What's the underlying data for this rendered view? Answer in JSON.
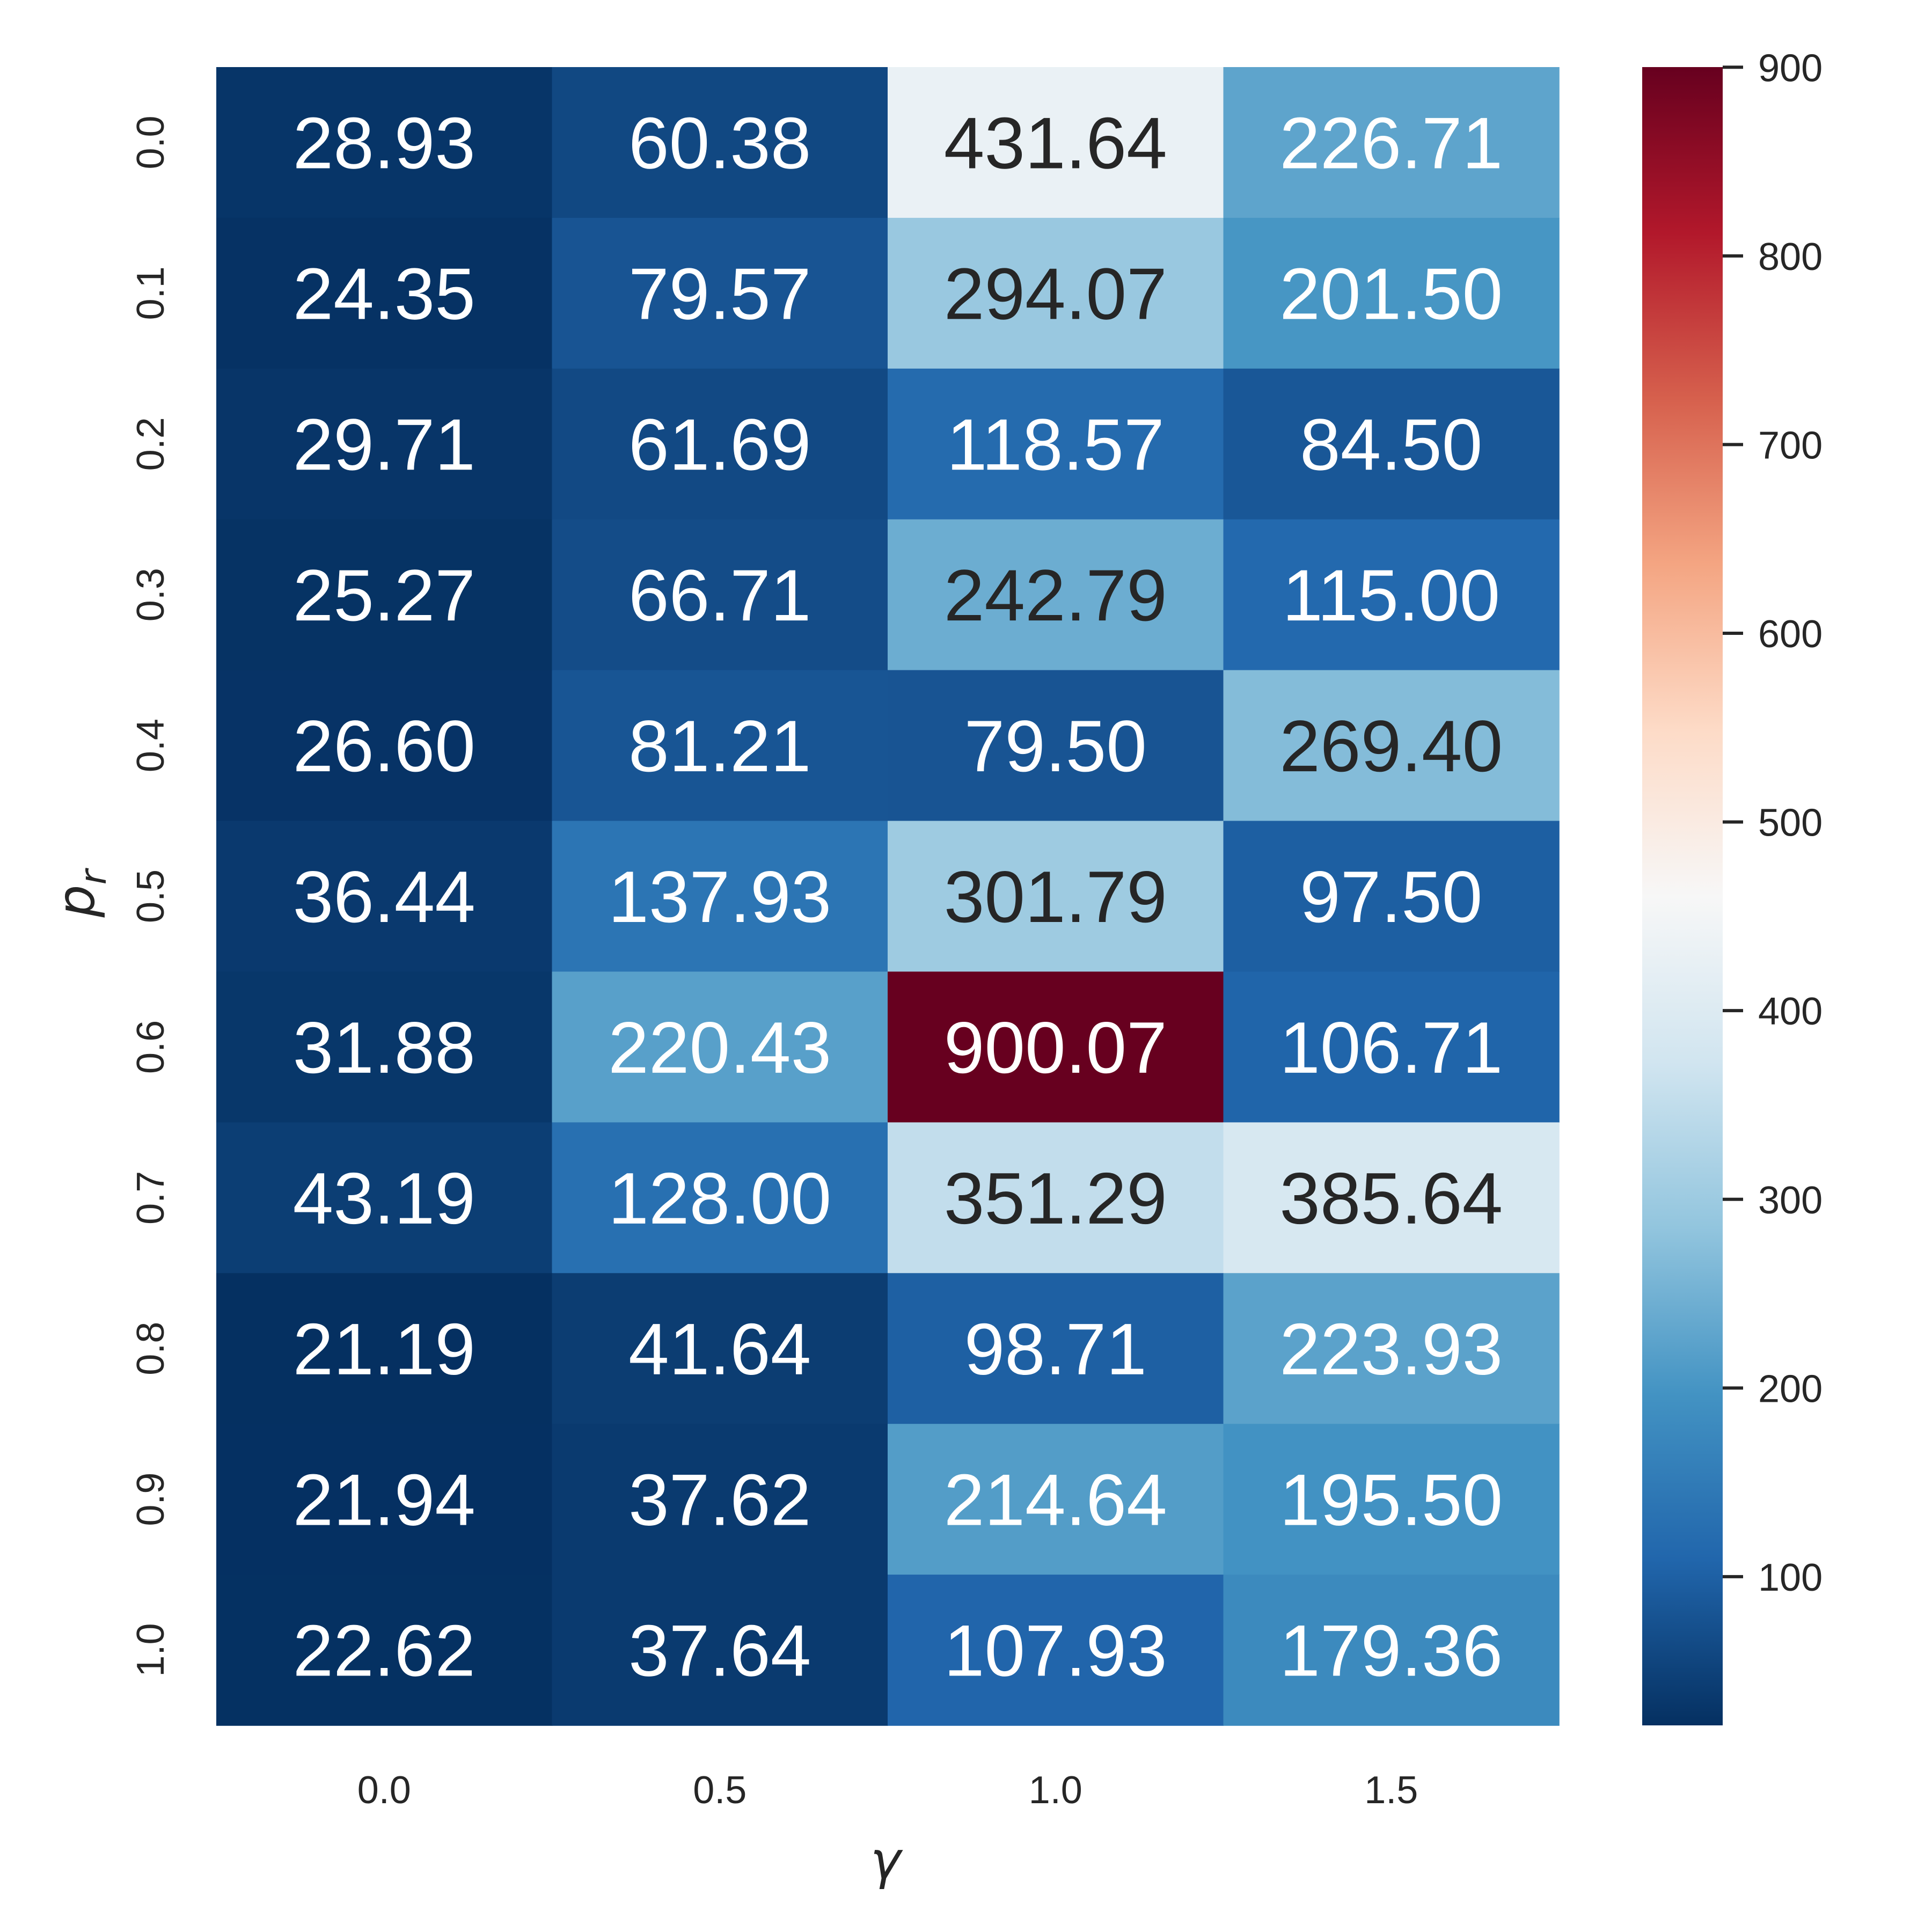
{
  "chart_data": {
    "type": "heatmap",
    "xlabel": "γ",
    "ylabel_main": "p",
    "ylabel_sub": "r",
    "x_categories": [
      "0.0",
      "0.5",
      "1.0",
      "1.5"
    ],
    "y_categories": [
      "0.0",
      "0.1",
      "0.2",
      "0.3",
      "0.4",
      "0.5",
      "0.6",
      "0.7",
      "0.8",
      "0.9",
      "1.0"
    ],
    "values": [
      [
        28.93,
        60.38,
        431.64,
        226.71
      ],
      [
        24.35,
        79.57,
        294.07,
        201.5
      ],
      [
        29.71,
        61.69,
        118.57,
        84.5
      ],
      [
        25.27,
        66.71,
        242.79,
        115.0
      ],
      [
        26.6,
        81.21,
        79.5,
        269.4
      ],
      [
        36.44,
        137.93,
        301.79,
        97.5
      ],
      [
        31.88,
        220.43,
        900.07,
        106.71
      ],
      [
        43.19,
        128.0,
        351.29,
        385.64
      ],
      [
        21.19,
        41.64,
        98.71,
        223.93
      ],
      [
        21.94,
        37.62,
        214.64,
        195.5
      ],
      [
        22.62,
        37.64,
        107.93,
        179.36
      ]
    ],
    "value_format": "2 decimals",
    "colormap": "RdBu_r",
    "colorbar": {
      "vmin": 21.19,
      "vmax": 900.07,
      "ticks": [
        "100",
        "200",
        "300",
        "400",
        "500",
        "600",
        "700",
        "800",
        "900"
      ]
    },
    "grid": false,
    "legend": "colorbar right"
  }
}
